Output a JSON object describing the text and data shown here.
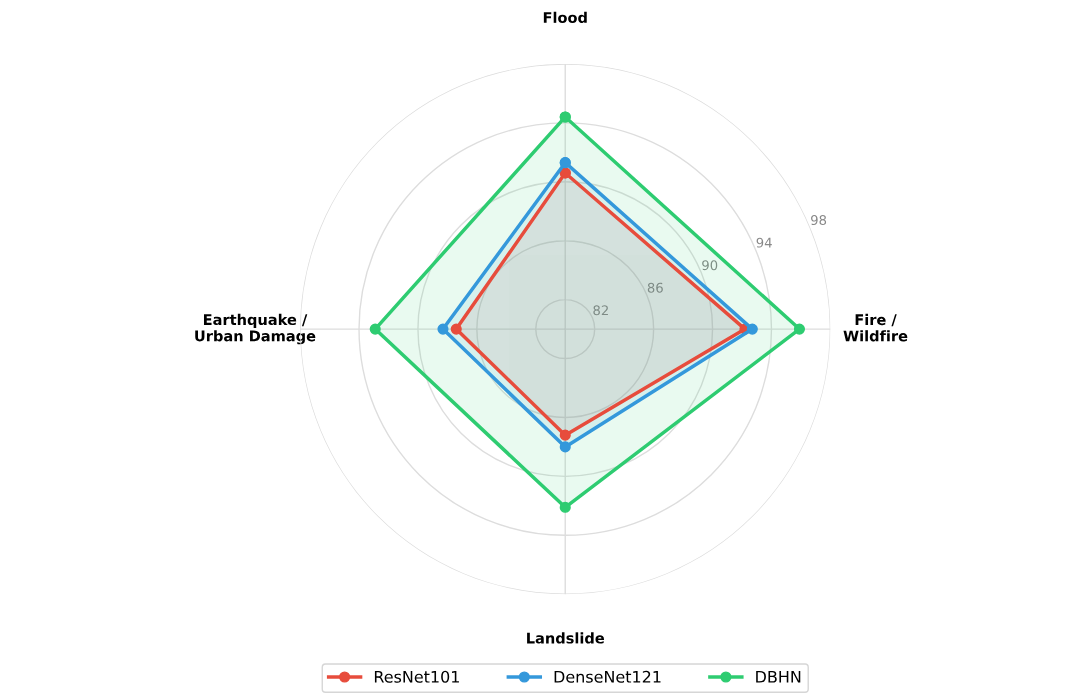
{
  "chart_data": {
    "type": "radar",
    "categories": [
      "Flood",
      "Fire /\nWildfire",
      "Landslide",
      "Earthquake /\nUrban Damage"
    ],
    "ylim": [
      80,
      98
    ],
    "yticks": [
      82,
      86,
      90,
      94,
      98
    ],
    "grid": true,
    "legend": "bottom",
    "marker": "circle",
    "line_style": "solid",
    "series": [
      {
        "name": "ResNet101",
        "color": "#e74c3c",
        "values": [
          90.6,
          92.2,
          87.2,
          87.4
        ]
      },
      {
        "name": "DenseNet121",
        "color": "#3498db",
        "values": [
          91.3,
          92.7,
          88.0,
          88.3
        ]
      },
      {
        "name": "DBHN",
        "color": "#2ecc71",
        "values": [
          94.4,
          95.9,
          92.1,
          92.9
        ]
      }
    ]
  }
}
